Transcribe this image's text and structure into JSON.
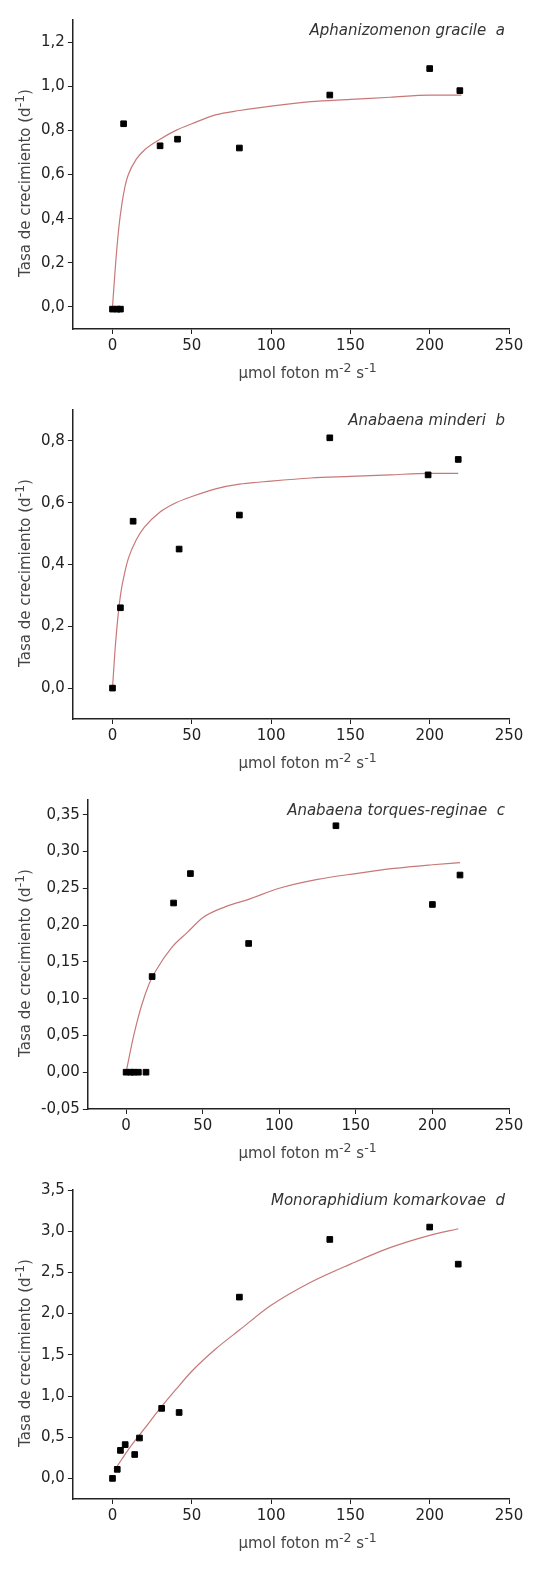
{
  "chart_data": [
    {
      "type": "scatter",
      "title": "Aphanizomenon gracile  a",
      "xlabel": "μmol foton m$^{-2}$ s$^{-1}$",
      "ylabel": "Tasa de crecimiento (d$^{-1}$)",
      "marker": "square",
      "xlim": [
        -25,
        250
      ],
      "ylim": [
        -0.1,
        1.3
      ],
      "xticks": [
        0,
        50,
        100,
        150,
        200,
        250
      ],
      "yticks": [
        {
          "value": 0,
          "label": "0,0"
        },
        {
          "value": 0.2,
          "label": "0,2"
        },
        {
          "value": 0.4,
          "label": "0,4"
        },
        {
          "value": 0.6,
          "label": "0,6"
        },
        {
          "value": 0.8,
          "label": "0,8"
        },
        {
          "value": 1.0,
          "label": "1,0"
        },
        {
          "value": 1.2,
          "label": "1,2"
        }
      ],
      "series": [
        {
          "color": "#000000",
          "x": [
            0,
            3,
            5,
            7,
            30,
            41,
            80,
            137,
            200,
            219
          ],
          "values": [
            -0.01,
            -0.01,
            -0.01,
            0.83,
            0.73,
            0.76,
            0.72,
            0.96,
            1.08,
            0.98
          ]
        },
        {
          "type": "line",
          "color": "#c87878",
          "marker": "none",
          "x": [
            0,
            2,
            4,
            6,
            8,
            10,
            15,
            20,
            30,
            40,
            50,
            65,
            80,
            100,
            125,
            150,
            175,
            200,
            220
          ],
          "values": [
            0,
            0.2,
            0.36,
            0.47,
            0.55,
            0.6,
            0.67,
            0.71,
            0.76,
            0.8,
            0.83,
            0.87,
            0.89,
            0.91,
            0.93,
            0.94,
            0.95,
            0.96,
            0.96
          ]
        }
      ]
    },
    {
      "type": "scatter",
      "title": "Anabaena minderi  b",
      "xlabel": "μmol foton m$^{-2}$ s$^{-1}$",
      "ylabel": "Tasa de crecimiento (d$^{-1}$)",
      "marker": "square",
      "xlim": [
        -25,
        250
      ],
      "ylim": [
        -0.1,
        0.9
      ],
      "xticks": [
        0,
        50,
        100,
        150,
        200,
        250
      ],
      "yticks": [
        {
          "value": 0,
          "label": "0,0"
        },
        {
          "value": 0.2,
          "label": "0,2"
        },
        {
          "value": 0.4,
          "label": "0,4"
        },
        {
          "value": 0.6,
          "label": "0,6"
        },
        {
          "value": 0.8,
          "label": "0,8"
        }
      ],
      "series": [
        {
          "color": "#000000",
          "x": [
            0,
            5,
            13,
            42,
            80,
            137,
            199,
            218
          ],
          "values": [
            0.0,
            0.26,
            0.54,
            0.45,
            0.56,
            0.81,
            0.69,
            0.74
          ]
        },
        {
          "type": "line",
          "color": "#c87878",
          "marker": "none",
          "x": [
            0,
            2,
            5,
            8,
            10,
            15,
            20,
            30,
            40,
            50,
            65,
            80,
            100,
            125,
            150,
            175,
            200,
            218
          ],
          "values": [
            0,
            0.15,
            0.3,
            0.38,
            0.42,
            0.48,
            0.52,
            0.57,
            0.6,
            0.62,
            0.645,
            0.66,
            0.67,
            0.68,
            0.685,
            0.69,
            0.695,
            0.695
          ]
        }
      ]
    },
    {
      "type": "scatter",
      "title": "Anabaena torques-reginae  c",
      "xlabel": "μmol foton m$^{-2}$ s$^{-1}$",
      "ylabel": "Tasa de crecimiento (d$^{-1}$)",
      "marker": "square",
      "xlim": [
        -25,
        250
      ],
      "ylim": [
        -0.05,
        0.37
      ],
      "xticks": [
        0,
        50,
        100,
        150,
        200,
        250
      ],
      "yticks": [
        {
          "value": -0.05,
          "label": "-0,05"
        },
        {
          "value": 0,
          "label": "0,00"
        },
        {
          "value": 0.05,
          "label": "0,05"
        },
        {
          "value": 0.1,
          "label": "0,10"
        },
        {
          "value": 0.15,
          "label": "0,15"
        },
        {
          "value": 0.2,
          "label": "0,20"
        },
        {
          "value": 0.25,
          "label": "0,25"
        },
        {
          "value": 0.3,
          "label": "0,30"
        },
        {
          "value": 0.35,
          "label": "0,35"
        }
      ],
      "series": [
        {
          "color": "#000000",
          "x": [
            0,
            3,
            5,
            8,
            13,
            17,
            31,
            42,
            80,
            137,
            200,
            218
          ],
          "values": [
            0,
            0,
            0,
            0,
            0,
            0.13,
            0.23,
            0.27,
            0.175,
            0.335,
            0.228,
            0.268
          ]
        },
        {
          "type": "line",
          "color": "#c87878",
          "marker": "none",
          "x": [
            0,
            5,
            10,
            15,
            20,
            30,
            40,
            50,
            65,
            80,
            100,
            125,
            150,
            175,
            200,
            218
          ],
          "values": [
            0,
            0.05,
            0.09,
            0.12,
            0.14,
            0.17,
            0.19,
            0.21,
            0.225,
            0.235,
            0.25,
            0.262,
            0.27,
            0.277,
            0.282,
            0.285
          ]
        }
      ]
    },
    {
      "type": "scatter",
      "title": "Monoraphidium komarkovae  d",
      "xlabel": "μmol foton m$^{-2}$ s$^{-1}$",
      "ylabel": "Tasa de crecimiento (d$^{-1}$)",
      "marker": "square",
      "xlim": [
        -25,
        250
      ],
      "ylim": [
        -0.25,
        3.5
      ],
      "xticks": [
        0,
        50,
        100,
        150,
        200,
        250
      ],
      "yticks": [
        {
          "value": 0,
          "label": "0,0"
        },
        {
          "value": 0.5,
          "label": "0,5"
        },
        {
          "value": 1.0,
          "label": "1,0"
        },
        {
          "value": 1.5,
          "label": "1,5"
        },
        {
          "value": 2.0,
          "label": "2,0"
        },
        {
          "value": 2.5,
          "label": "2,5"
        },
        {
          "value": 3.0,
          "label": "3,0"
        },
        {
          "value": 3.5,
          "label": "3,5"
        }
      ],
      "series": [
        {
          "color": "#000000",
          "x": [
            0,
            3,
            5,
            8,
            14,
            17,
            31,
            42,
            80,
            137,
            200,
            218
          ],
          "values": [
            0,
            0.11,
            0.34,
            0.41,
            0.29,
            0.49,
            0.85,
            0.8,
            2.2,
            2.9,
            3.05,
            2.6
          ]
        },
        {
          "type": "line",
          "color": "#c87878",
          "marker": "none",
          "x": [
            3,
            10,
            20,
            30,
            40,
            50,
            65,
            80,
            100,
            125,
            150,
            175,
            200,
            218
          ],
          "values": [
            0.15,
            0.35,
            0.6,
            0.85,
            1.08,
            1.3,
            1.57,
            1.8,
            2.1,
            2.38,
            2.6,
            2.8,
            2.95,
            3.03
          ]
        }
      ]
    }
  ]
}
